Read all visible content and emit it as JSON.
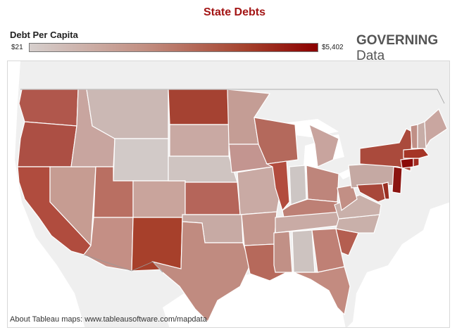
{
  "title": "State Debts",
  "legend": {
    "title": "Debt Per Capita",
    "min_label": "$21",
    "max_label": "$5,402",
    "min_value": 21,
    "max_value": 5402,
    "color_low": "#d6cfcd",
    "color_high": "#8b0000"
  },
  "brand": {
    "bold": "GOVERNING",
    "light": "Data"
  },
  "footer": "About Tableau maps: www.tableausoftware.com/mapdata",
  "colors": {
    "water": "#ffffff",
    "land": "#eeeeee",
    "border": "#ffffff"
  }
}
